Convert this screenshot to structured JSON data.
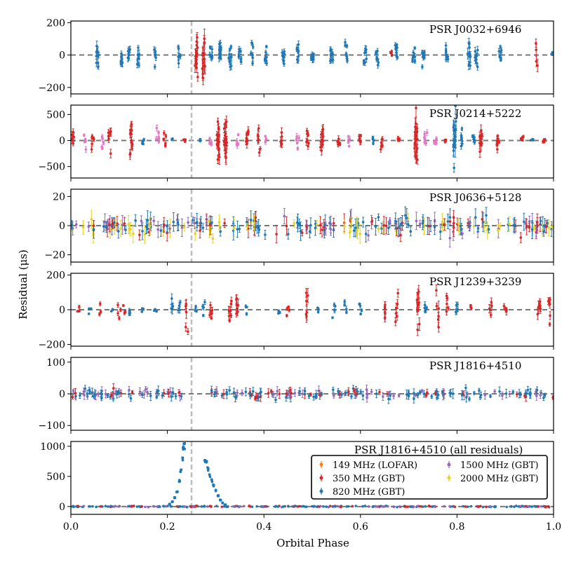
{
  "figure": {
    "ylabel": "Residual (μs)",
    "xlabel": "Orbital Phase",
    "x_ticks": [
      "0.0",
      "0.2",
      "0.4",
      "0.6",
      "0.8",
      "1.0"
    ],
    "xlim": [
      0.0,
      1.0
    ],
    "reference_vline_x": 0.25
  },
  "colors": {
    "lofar_149": "#ff7f0e",
    "gbt_350": "#d62728",
    "gbt_820": "#1f77b4",
    "gbt_1500": "#9467bd",
    "gbt_2000": "#e5d51a",
    "pink": "#e377c2",
    "zero_line": "#777777",
    "vline": "#bdbdbd"
  },
  "legend": {
    "entries": [
      {
        "label": "149 MHz (LOFAR)",
        "color": "#ff7f0e"
      },
      {
        "label": "350 MHz (GBT)",
        "color": "#d62728"
      },
      {
        "label": "820 MHz (GBT)",
        "color": "#1f77b4"
      },
      {
        "label": "1500 MHz (GBT)",
        "color": "#9467bd"
      },
      {
        "label": "2000 MHz (GBT)",
        "color": "#e5d51a"
      }
    ]
  },
  "chart_data": [
    {
      "type": "scatter",
      "title": "PSR J0032+6946",
      "ylim": [
        -240,
        210
      ],
      "y_ticks": [
        -200,
        0,
        200
      ],
      "y_tick_labels": [
        "−200",
        "0",
        "200"
      ],
      "clusters": [
        {
          "x": 0.055,
          "c": "gbt_820",
          "s": 45,
          "n": 10
        },
        {
          "x": 0.105,
          "c": "gbt_820",
          "s": 40,
          "n": 8
        },
        {
          "x": 0.12,
          "c": "gbt_820",
          "s": 35,
          "n": 8
        },
        {
          "x": 0.14,
          "c": "gbt_820",
          "s": 35,
          "n": 8
        },
        {
          "x": 0.175,
          "c": "gbt_820",
          "s": 30,
          "n": 6
        },
        {
          "x": 0.225,
          "c": "gbt_820",
          "s": 35,
          "n": 8
        },
        {
          "x": 0.26,
          "c": "gbt_350",
          "s": 60,
          "n": 14
        },
        {
          "x": 0.275,
          "c": "gbt_350",
          "s": 80,
          "n": 14
        },
        {
          "x": 0.29,
          "c": "gbt_820",
          "s": 30,
          "n": 8
        },
        {
          "x": 0.31,
          "c": "gbt_820",
          "s": 35,
          "n": 12
        },
        {
          "x": 0.33,
          "c": "gbt_820",
          "s": 30,
          "n": 10
        },
        {
          "x": 0.35,
          "c": "gbt_820",
          "s": 25,
          "n": 8
        },
        {
          "x": 0.375,
          "c": "gbt_820",
          "s": 30,
          "n": 8
        },
        {
          "x": 0.405,
          "c": "gbt_820",
          "s": 30,
          "n": 8
        },
        {
          "x": 0.44,
          "c": "gbt_820",
          "s": 30,
          "n": 8
        },
        {
          "x": 0.47,
          "c": "gbt_820",
          "s": 30,
          "n": 8
        },
        {
          "x": 0.5,
          "c": "gbt_820",
          "s": 25,
          "n": 8
        },
        {
          "x": 0.54,
          "c": "gbt_820",
          "s": 35,
          "n": 10
        },
        {
          "x": 0.57,
          "c": "gbt_820",
          "s": 30,
          "n": 8
        },
        {
          "x": 0.61,
          "c": "gbt_820",
          "s": 30,
          "n": 8
        },
        {
          "x": 0.635,
          "c": "gbt_820",
          "s": 30,
          "n": 8
        },
        {
          "x": 0.665,
          "c": "gbt_350",
          "s": 20,
          "n": 4
        },
        {
          "x": 0.675,
          "c": "gbt_820",
          "s": 30,
          "n": 8
        },
        {
          "x": 0.71,
          "c": "gbt_820",
          "s": 30,
          "n": 8
        },
        {
          "x": 0.73,
          "c": "gbt_820",
          "s": 30,
          "n": 8
        },
        {
          "x": 0.78,
          "c": "gbt_820",
          "s": 30,
          "n": 8
        },
        {
          "x": 0.825,
          "c": "gbt_820",
          "s": 45,
          "n": 10
        },
        {
          "x": 0.84,
          "c": "gbt_820",
          "s": 35,
          "n": 8
        },
        {
          "x": 0.89,
          "c": "gbt_820",
          "s": 25,
          "n": 8
        },
        {
          "x": 0.965,
          "c": "gbt_350",
          "s": 60,
          "n": 4
        },
        {
          "x": 0.995,
          "c": "gbt_820",
          "s": 10,
          "n": 3
        }
      ]
    },
    {
      "type": "scatter",
      "title": "PSR J0214+5222",
      "ylim": [
        -720,
        680
      ],
      "y_ticks": [
        -500,
        0,
        500
      ],
      "y_tick_labels": [
        "−500",
        "0",
        "500"
      ],
      "clusters": [
        {
          "x": 0.005,
          "c": "gbt_350",
          "s": 120,
          "n": 6
        },
        {
          "x": 0.03,
          "c": "pink",
          "s": 80,
          "n": 5
        },
        {
          "x": 0.045,
          "c": "gbt_350",
          "s": 90,
          "n": 6
        },
        {
          "x": 0.065,
          "c": "pink",
          "s": 80,
          "n": 5
        },
        {
          "x": 0.08,
          "c": "gbt_350",
          "s": 120,
          "n": 8
        },
        {
          "x": 0.125,
          "c": "gbt_350",
          "s": 150,
          "n": 14
        },
        {
          "x": 0.15,
          "c": "gbt_820",
          "s": 40,
          "n": 4
        },
        {
          "x": 0.18,
          "c": "pink",
          "s": 90,
          "n": 6
        },
        {
          "x": 0.195,
          "c": "gbt_350",
          "s": 60,
          "n": 6
        },
        {
          "x": 0.21,
          "c": "gbt_820",
          "s": 30,
          "n": 4
        },
        {
          "x": 0.235,
          "c": "gbt_350",
          "s": 40,
          "n": 4
        },
        {
          "x": 0.265,
          "c": "gbt_820",
          "s": 30,
          "n": 3
        },
        {
          "x": 0.29,
          "c": "pink",
          "s": 60,
          "n": 5
        },
        {
          "x": 0.305,
          "c": "gbt_350",
          "s": 200,
          "n": 18
        },
        {
          "x": 0.32,
          "c": "gbt_350",
          "s": 200,
          "n": 18
        },
        {
          "x": 0.345,
          "c": "pink",
          "s": 80,
          "n": 5
        },
        {
          "x": 0.365,
          "c": "gbt_350",
          "s": 120,
          "n": 10
        },
        {
          "x": 0.39,
          "c": "gbt_350",
          "s": 150,
          "n": 8
        },
        {
          "x": 0.405,
          "c": "pink",
          "s": 60,
          "n": 4
        },
        {
          "x": 0.435,
          "c": "gbt_350",
          "s": 120,
          "n": 8
        },
        {
          "x": 0.47,
          "c": "pink",
          "s": 80,
          "n": 6
        },
        {
          "x": 0.49,
          "c": "gbt_350",
          "s": 90,
          "n": 8
        },
        {
          "x": 0.52,
          "c": "gbt_350",
          "s": 140,
          "n": 12
        },
        {
          "x": 0.555,
          "c": "gbt_350",
          "s": 90,
          "n": 6
        },
        {
          "x": 0.575,
          "c": "pink",
          "s": 60,
          "n": 5
        },
        {
          "x": 0.6,
          "c": "gbt_350",
          "s": 70,
          "n": 6
        },
        {
          "x": 0.625,
          "c": "gbt_820",
          "s": 40,
          "n": 4
        },
        {
          "x": 0.645,
          "c": "gbt_350",
          "s": 80,
          "n": 6
        },
        {
          "x": 0.68,
          "c": "gbt_350",
          "s": 60,
          "n": 5
        },
        {
          "x": 0.715,
          "c": "gbt_350",
          "s": 250,
          "n": 20
        },
        {
          "x": 0.735,
          "c": "pink",
          "s": 80,
          "n": 6
        },
        {
          "x": 0.755,
          "c": "pink",
          "s": 60,
          "n": 5
        },
        {
          "x": 0.775,
          "c": "gbt_350",
          "s": 40,
          "n": 4
        },
        {
          "x": 0.795,
          "c": "gbt_820",
          "s": 250,
          "n": 18
        },
        {
          "x": 0.81,
          "c": "gbt_820",
          "s": 80,
          "n": 8
        },
        {
          "x": 0.835,
          "c": "gbt_820",
          "s": 80,
          "n": 6
        },
        {
          "x": 0.85,
          "c": "gbt_350",
          "s": 150,
          "n": 10
        },
        {
          "x": 0.885,
          "c": "gbt_350",
          "s": 100,
          "n": 8
        },
        {
          "x": 0.935,
          "c": "gbt_350",
          "s": 40,
          "n": 4
        },
        {
          "x": 0.955,
          "c": "gbt_820",
          "s": 30,
          "n": 4
        },
        {
          "x": 0.98,
          "c": "gbt_350",
          "s": 60,
          "n": 4
        }
      ]
    },
    {
      "type": "scatter",
      "title": "PSR J0636+5128",
      "ylim": [
        -25,
        25
      ],
      "y_ticks": [
        -20,
        0,
        20
      ],
      "y_tick_labels": [
        "−20",
        "0",
        "20"
      ],
      "dense": {
        "n": 260,
        "s": 5,
        "colors": [
          "gbt_820",
          "gbt_820",
          "gbt_350",
          "gbt_1500",
          "gbt_2000"
        ]
      }
    },
    {
      "type": "scatter",
      "title": "PSR J1239+3239",
      "ylim": [
        -210,
        210
      ],
      "y_ticks": [
        -200,
        0,
        200
      ],
      "y_tick_labels": [
        "−200",
        "0",
        "200"
      ],
      "clusters": [
        {
          "x": 0.015,
          "c": "gbt_350",
          "s": 15,
          "n": 3
        },
        {
          "x": 0.04,
          "c": "gbt_820",
          "s": 10,
          "n": 3
        },
        {
          "x": 0.06,
          "c": "gbt_350",
          "s": 15,
          "n": 3
        },
        {
          "x": 0.085,
          "c": "gbt_820",
          "s": 10,
          "n": 3
        },
        {
          "x": 0.1,
          "c": "gbt_350",
          "s": 20,
          "n": 4
        },
        {
          "x": 0.11,
          "c": "gbt_350",
          "s": 15,
          "n": 4
        },
        {
          "x": 0.12,
          "c": "gbt_820",
          "s": 20,
          "n": 4
        },
        {
          "x": 0.15,
          "c": "gbt_820",
          "s": 10,
          "n": 3
        },
        {
          "x": 0.175,
          "c": "gbt_820",
          "s": 10,
          "n": 3
        },
        {
          "x": 0.21,
          "c": "gbt_820",
          "s": 40,
          "n": 4
        },
        {
          "x": 0.225,
          "c": "gbt_820",
          "s": 25,
          "n": 4
        },
        {
          "x": 0.24,
          "c": "gbt_350",
          "s": 50,
          "n": 6
        },
        {
          "x": 0.26,
          "c": "gbt_820",
          "s": 20,
          "n": 3
        },
        {
          "x": 0.275,
          "c": "gbt_820",
          "s": 20,
          "n": 4
        },
        {
          "x": 0.29,
          "c": "gbt_350",
          "s": 30,
          "n": 6
        },
        {
          "x": 0.33,
          "c": "gbt_350",
          "s": 40,
          "n": 8
        },
        {
          "x": 0.345,
          "c": "gbt_350",
          "s": 50,
          "n": 8
        },
        {
          "x": 0.365,
          "c": "gbt_820",
          "s": 15,
          "n": 3
        },
        {
          "x": 0.43,
          "c": "gbt_820",
          "s": 10,
          "n": 3
        },
        {
          "x": 0.45,
          "c": "gbt_350",
          "s": 20,
          "n": 4
        },
        {
          "x": 0.49,
          "c": "gbt_350",
          "s": 60,
          "n": 6
        },
        {
          "x": 0.51,
          "c": "gbt_820",
          "s": 10,
          "n": 3
        },
        {
          "x": 0.545,
          "c": "gbt_820",
          "s": 20,
          "n": 4
        },
        {
          "x": 0.57,
          "c": "gbt_820",
          "s": 25,
          "n": 4
        },
        {
          "x": 0.6,
          "c": "gbt_820",
          "s": 20,
          "n": 4
        },
        {
          "x": 0.65,
          "c": "gbt_350",
          "s": 40,
          "n": 6
        },
        {
          "x": 0.675,
          "c": "gbt_350",
          "s": 40,
          "n": 6
        },
        {
          "x": 0.72,
          "c": "gbt_350",
          "s": 70,
          "n": 10
        },
        {
          "x": 0.735,
          "c": "gbt_820",
          "s": 25,
          "n": 5
        },
        {
          "x": 0.76,
          "c": "gbt_350",
          "s": 60,
          "n": 6
        },
        {
          "x": 0.78,
          "c": "gbt_350",
          "s": 40,
          "n": 5
        },
        {
          "x": 0.8,
          "c": "gbt_820",
          "s": 30,
          "n": 5
        },
        {
          "x": 0.83,
          "c": "gbt_350",
          "s": 15,
          "n": 3
        },
        {
          "x": 0.87,
          "c": "gbt_350",
          "s": 40,
          "n": 5
        },
        {
          "x": 0.9,
          "c": "gbt_350",
          "s": 30,
          "n": 5
        },
        {
          "x": 0.97,
          "c": "gbt_350",
          "s": 50,
          "n": 8
        },
        {
          "x": 0.99,
          "c": "gbt_350",
          "s": 40,
          "n": 6
        }
      ]
    },
    {
      "type": "scatter",
      "title": "PSR J1816+4510",
      "ylim": [
        -115,
        115
      ],
      "y_ticks": [
        -100,
        0,
        100
      ],
      "y_tick_labels": [
        "−100",
        "0",
        "100"
      ],
      "dense": {
        "n": 230,
        "s": 12,
        "colors": [
          "gbt_820",
          "gbt_820",
          "gbt_820",
          "gbt_350",
          "gbt_1500"
        ],
        "gap": [
          0.235,
          0.29
        ]
      }
    },
    {
      "type": "scatter",
      "title": "PSR J1816+4510 (all residuals)",
      "ylim": [
        -130,
        1080
      ],
      "y_ticks": [
        0,
        500,
        1000
      ],
      "y_tick_labels": [
        "0",
        "500",
        "1000"
      ],
      "dense": {
        "n": 260,
        "s": 8,
        "colors": [
          "gbt_820",
          "gbt_820",
          "gbt_350",
          "gbt_1500"
        ]
      },
      "curves": [
        {
          "c": "gbt_820",
          "points": [
            [
              0.205,
              40
            ],
            [
              0.21,
              80
            ],
            [
              0.215,
              150
            ],
            [
              0.22,
              250
            ],
            [
              0.225,
              420
            ],
            [
              0.228,
              600
            ],
            [
              0.231,
              800
            ],
            [
              0.233,
              980
            ],
            [
              0.235,
              1000
            ]
          ]
        },
        {
          "c": "gbt_820",
          "points": [
            [
              0.278,
              780
            ],
            [
              0.281,
              720
            ],
            [
              0.284,
              620
            ],
            [
              0.288,
              520
            ],
            [
              0.292,
              430
            ],
            [
              0.296,
              350
            ],
            [
              0.3,
              260
            ],
            [
              0.305,
              180
            ],
            [
              0.31,
              110
            ],
            [
              0.315,
              60
            ],
            [
              0.32,
              30
            ]
          ]
        }
      ]
    }
  ]
}
